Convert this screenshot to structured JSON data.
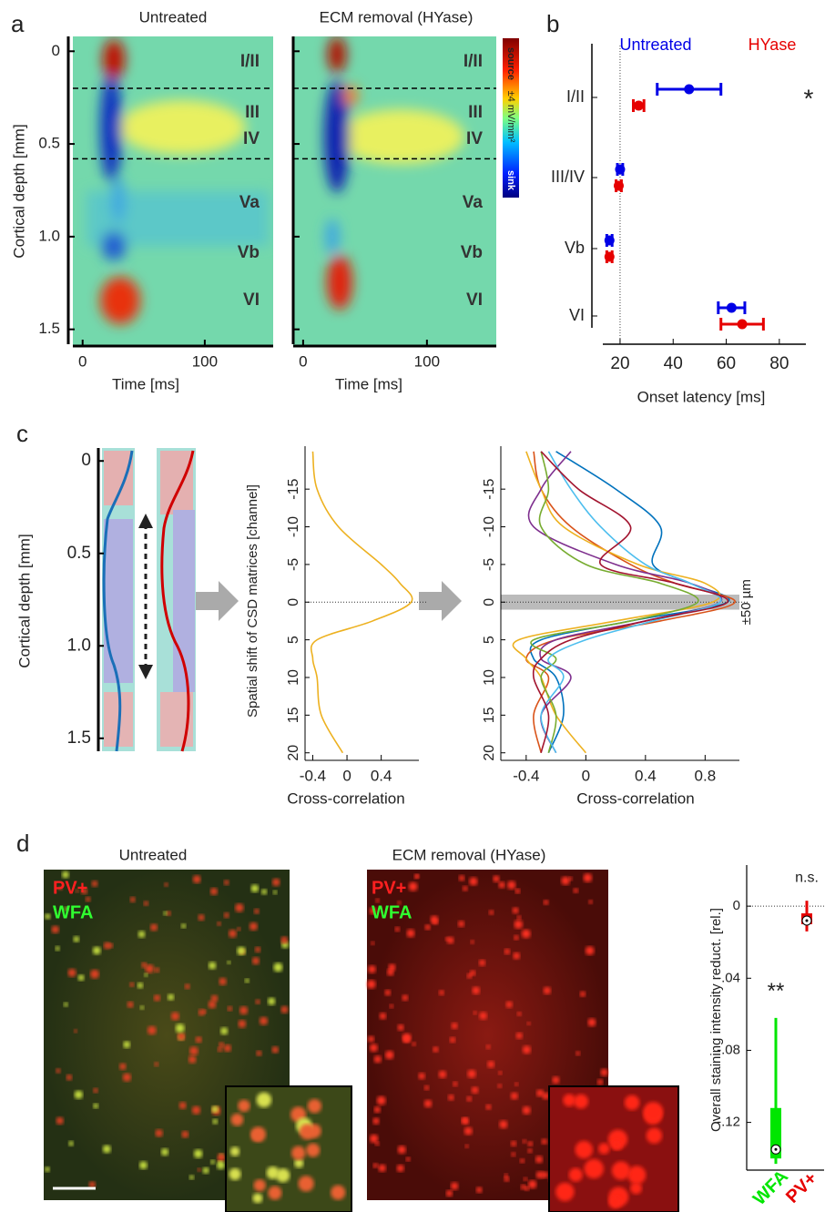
{
  "panel_labels": [
    "a",
    "b",
    "c",
    "d"
  ],
  "panel_a": {
    "titles": [
      "Untreated",
      "ECM removal (HYase)"
    ],
    "ylabel": "Cortical depth [mm]",
    "xlabel": "Time [ms]",
    "ylim": [
      -0.08,
      1.59
    ],
    "yticks": [
      0,
      0.5,
      {
        "value": 1,
        "label": "1.0"
      },
      1.5
    ],
    "xlim": [
      -8,
      156
    ],
    "xticks": [
      0,
      100
    ],
    "layers": [
      "I/II",
      "III",
      "IV",
      "Va",
      "Vb",
      "VI"
    ],
    "boundaries": [
      0.2,
      0.58
    ],
    "colorbar_labels": [
      "source",
      "±4 mV/mm²",
      "sink"
    ]
  },
  "panel_b": {
    "type": "dot-errorbar",
    "categories": [
      "I/II",
      "III/IV",
      "Vb",
      "VI"
    ],
    "series": [
      {
        "name": "Untreated",
        "color": "#0000e6",
        "values": [
          46,
          20,
          16,
          62
        ],
        "errors": [
          12,
          1,
          1,
          5
        ]
      },
      {
        "name": "HYase",
        "color": "#e60000",
        "values": [
          27,
          19.5,
          16,
          66
        ],
        "errors": [
          2,
          1,
          1,
          8
        ]
      }
    ],
    "xlim": [
      13.5,
      90
    ],
    "xticks": [
      20,
      40,
      60,
      80
    ],
    "xlabel": "Onset latency [ms]",
    "reference_line": 20,
    "annotation": "*"
  },
  "panel_c": {
    "depth_label": "Cortical depth [mm]",
    "depth_lim": [
      -0.07,
      1.57
    ],
    "depth_ticks": [
      0,
      0.5,
      {
        "value": 1,
        "label": "1.0"
      },
      1.5
    ],
    "ylabel": "Spatial shift of CSD matrices [channel]",
    "xlabel": "Cross-correlation",
    "ylim": [
      -20.7,
      21
    ],
    "yticks": [
      -15,
      -10,
      -5,
      0,
      5,
      10,
      15,
      20
    ],
    "shifts": [
      -20,
      -15,
      -10,
      -5,
      -2.5,
      0,
      2.5,
      5,
      7.5,
      10,
      15,
      20
    ],
    "single": {
      "type": "line",
      "xlim": [
        -0.49,
        0.84
      ],
      "xticks": [
        -0.4,
        0,
        0.4
      ],
      "lines": [
        {
          "color": "#edb120",
          "values": [
            -0.4,
            -0.35,
            -0.1,
            0.4,
            0.62,
            0.75,
            0.3,
            -0.35,
            -0.4,
            -0.35,
            -0.3,
            -0.05
          ]
        }
      ]
    },
    "all": {
      "type": "line",
      "xlim": [
        -0.57,
        1.03
      ],
      "xticks": [
        -0.4,
        0,
        0.4,
        0.8
      ],
      "band": [
        -1,
        1
      ],
      "band_label": "±50 µm",
      "lines": [
        {
          "color": "#0072bd",
          "values": [
            -0.2,
            0.2,
            0.5,
            0.45,
            0.7,
            0.95,
            0.3,
            -0.3,
            -0.35,
            -0.2,
            -0.15,
            -0.25
          ]
        },
        {
          "color": "#d95319",
          "values": [
            -0.35,
            -0.3,
            -0.1,
            0.3,
            0.6,
            1.0,
            0.5,
            -0.2,
            -0.4,
            -0.25,
            -0.35,
            -0.3
          ]
        },
        {
          "color": "#edb120",
          "values": [
            -0.4,
            -0.3,
            -0.15,
            0.35,
            0.8,
            0.85,
            0.2,
            -0.45,
            -0.4,
            -0.3,
            -0.2,
            0.0
          ]
        },
        {
          "color": "#7e2f8e",
          "values": [
            -0.1,
            -0.3,
            -0.35,
            0.2,
            0.7,
            0.9,
            0.4,
            -0.2,
            -0.3,
            -0.1,
            -0.3,
            -0.2
          ]
        },
        {
          "color": "#77ac30",
          "values": [
            -0.3,
            -0.25,
            -0.3,
            0.0,
            0.5,
            0.75,
            0.3,
            -0.35,
            -0.2,
            -0.3,
            -0.2,
            -0.25
          ]
        },
        {
          "color": "#4dbeee",
          "values": [
            -0.25,
            -0.1,
            0.1,
            0.4,
            0.7,
            0.9,
            0.45,
            0.0,
            -0.25,
            -0.15,
            -0.3,
            -0.2
          ]
        },
        {
          "color": "#a2142f",
          "values": [
            -0.3,
            -0.05,
            0.3,
            0.1,
            0.6,
            0.95,
            0.4,
            -0.1,
            -0.3,
            -0.35,
            -0.25,
            -0.3
          ]
        }
      ]
    }
  },
  "panel_d": {
    "titles": [
      "Untreated",
      "ECM removal (HYase)"
    ],
    "stain_labels": [
      "PV+",
      "WFA"
    ],
    "boxplot": {
      "type": "box",
      "ylabel": "Overall staining intensity reduct. [rel.]",
      "categories": [
        "WFA",
        "PV+"
      ],
      "colors": [
        "#00e600",
        "#e60000"
      ],
      "ylim": [
        0.0228,
        -0.149
      ],
      "yticks": [
        0,
        {
          "value": -0.04,
          "label": "-.04"
        },
        {
          "value": -0.08,
          "label": "-.08"
        },
        {
          "value": -0.12,
          "label": "-.12"
        }
      ],
      "whisker_high": [
        -0.062,
        0.003
      ],
      "q3": [
        -0.112,
        -0.004
      ],
      "median": [
        -0.135,
        -0.008
      ],
      "q1": [
        -0.14,
        -0.01
      ],
      "whisker_low": [
        -0.143,
        -0.014
      ],
      "annotations": [
        "**",
        "n.s."
      ]
    }
  }
}
